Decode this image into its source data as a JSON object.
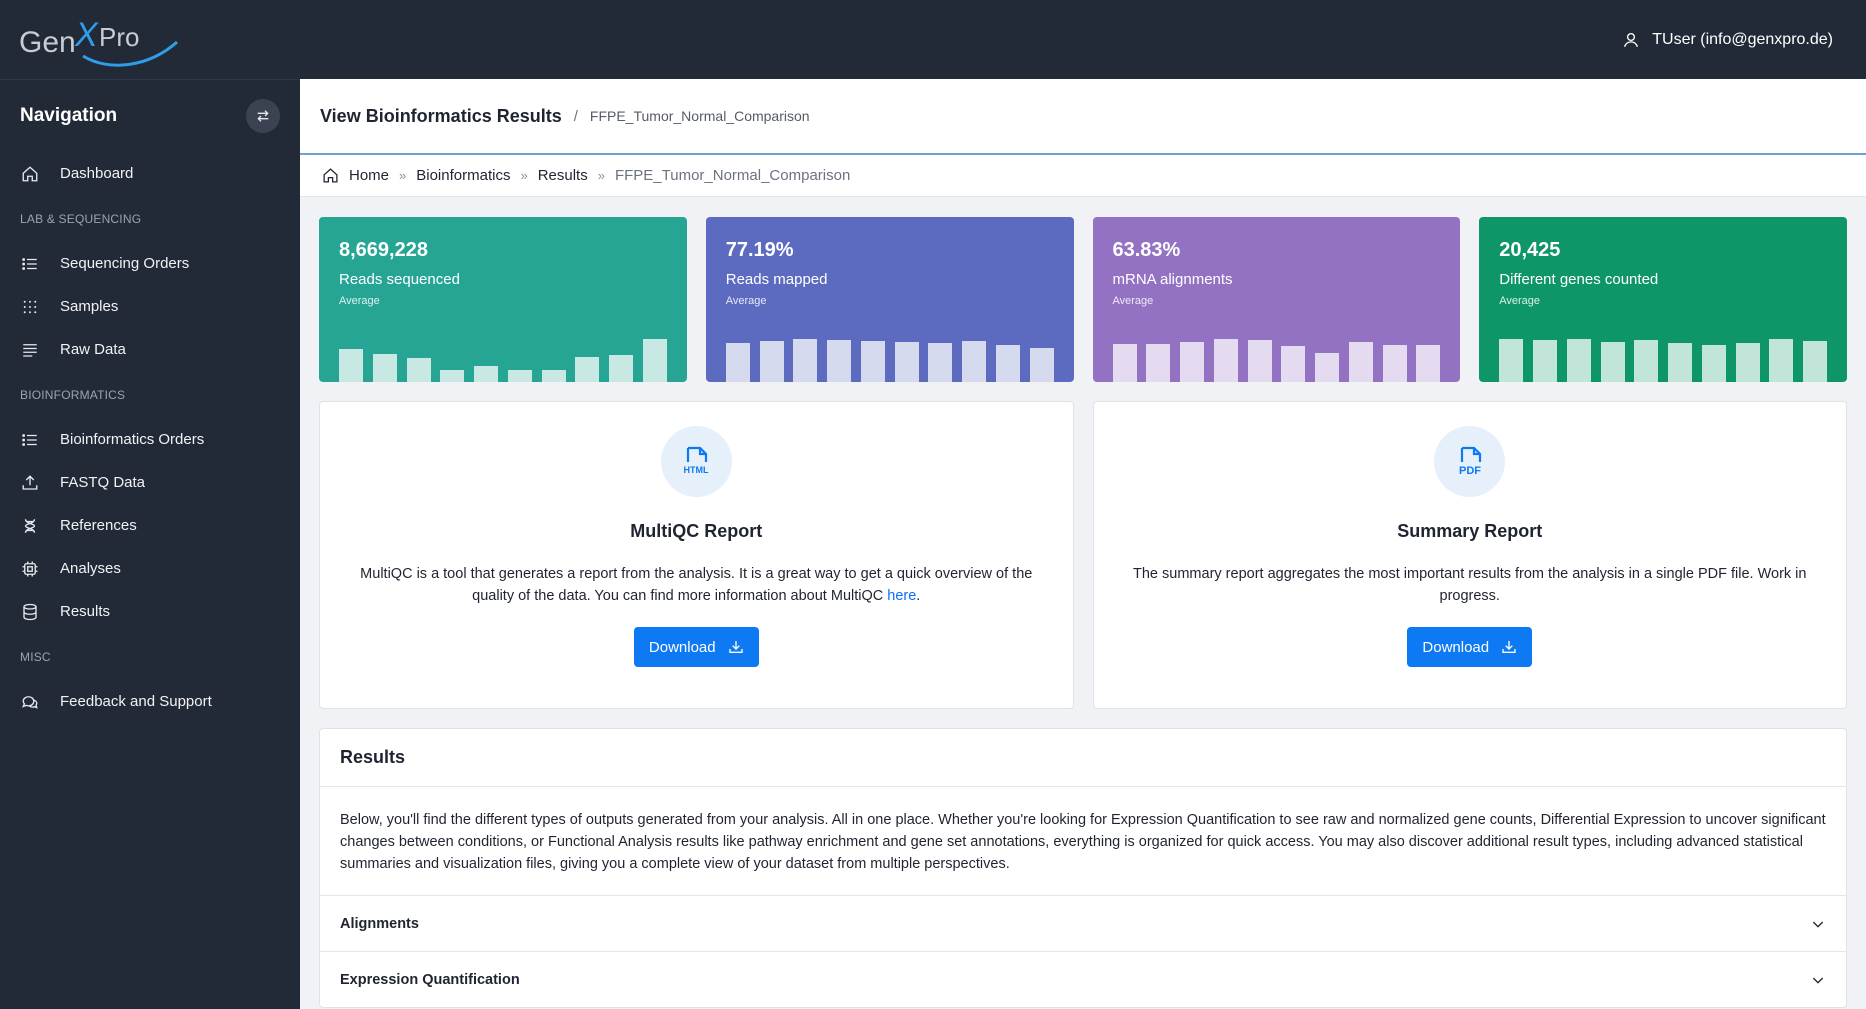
{
  "brand": {
    "logo_text": "GenXPro"
  },
  "user": {
    "label": "TUser (info@genxpro.de)"
  },
  "sidebar": {
    "title": "Navigation",
    "dashboard": "Dashboard",
    "sections": {
      "lab": "LAB & SEQUENCING",
      "bio": "BIOINFORMATICS",
      "misc": "MISC"
    },
    "items": {
      "sequencing_orders": "Sequencing Orders",
      "samples": "Samples",
      "raw_data": "Raw Data",
      "bioinformatics_orders": "Bioinformatics Orders",
      "fastq_data": "FASTQ Data",
      "references": "References",
      "analyses": "Analyses",
      "results": "Results",
      "feedback": "Feedback and Support"
    }
  },
  "header": {
    "title": "View Bioinformatics Results",
    "separator": "/",
    "subtitle": "FFPE_Tumor_Normal_Comparison"
  },
  "breadcrumb": {
    "items": [
      "Home",
      "Bioinformatics",
      "Results",
      "FFPE_Tumor_Normal_Comparison"
    ],
    "separator": "»"
  },
  "stats": [
    {
      "value": "8,669,228",
      "label": "Reads sequenced",
      "sub": "Average",
      "color": "#26a595",
      "bars": [
        0.55,
        0.47,
        0.4,
        0.2,
        0.27,
        0.2,
        0.2,
        0.42,
        0.45,
        0.72
      ]
    },
    {
      "value": "77.19%",
      "label": "Reads mapped",
      "sub": "Average",
      "color": "#5c6bc0",
      "bars": [
        0.65,
        0.68,
        0.72,
        0.7,
        0.68,
        0.66,
        0.65,
        0.68,
        0.62,
        0.57
      ]
    },
    {
      "value": "63.83%",
      "label": "mRNA alignments",
      "sub": "Average",
      "color": "#9372c4",
      "bars": [
        0.63,
        0.64,
        0.66,
        0.72,
        0.7,
        0.6,
        0.48,
        0.67,
        0.61,
        0.62
      ]
    },
    {
      "value": "20,425",
      "label": "Different genes counted",
      "sub": "Average",
      "color": "#0e9668",
      "bars": [
        0.72,
        0.7,
        0.72,
        0.67,
        0.7,
        0.65,
        0.62,
        0.65,
        0.72,
        0.69
      ]
    }
  ],
  "reports": {
    "multiqc": {
      "badge": "HTML",
      "title": "MultiQC Report",
      "text_before": "MultiQC is a tool that generates a report from the analysis. It is a great way to get a quick overview of the quality of the data. You can find more information about MultiQC ",
      "link": "here",
      "text_after": ".",
      "button": "Download"
    },
    "summary": {
      "badge": "PDF",
      "title": "Summary Report",
      "text": "The summary report aggregates the most important results from the analysis in a single PDF file. Work in progress.",
      "button": "Download"
    }
  },
  "results": {
    "title": "Results",
    "description": "Below, you'll find the different types of outputs generated from your analysis. All in one place. Whether you're looking for Expression Quantification to see raw and normalized gene counts, Differential Expression to uncover significant changes between conditions, or Functional Analysis results like pathway enrichment and gene set annotations, everything is organized for quick access. You may also discover additional result types, including advanced statistical summaries and visualization files, giving you a complete view of your dataset from multiple perspectives.",
    "sections": [
      "Alignments",
      "Expression Quantification"
    ]
  }
}
